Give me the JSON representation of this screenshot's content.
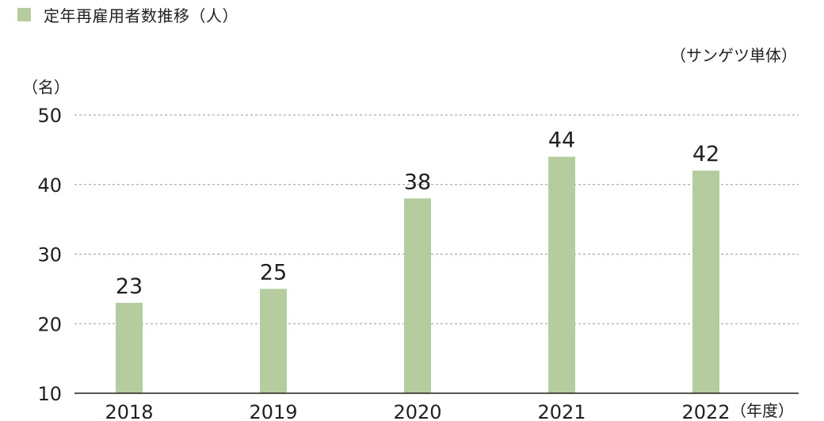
{
  "legend": {
    "label": "定年再雇用者数推移（人）",
    "color": "#b5cc9f"
  },
  "unit_note": "（サンゲツ単体）",
  "chart_data": {
    "type": "bar",
    "title": "",
    "categories": [
      "2018",
      "2019",
      "2020",
      "2021",
      "2022"
    ],
    "values": [
      23,
      25,
      38,
      44,
      42
    ],
    "ylabel": "（名）",
    "xlabel": "（年度）",
    "ylim": [
      10,
      50
    ],
    "yticks": [
      10,
      20,
      30,
      40,
      50
    ],
    "grid": true,
    "bar_color": "#b5cc9f"
  }
}
